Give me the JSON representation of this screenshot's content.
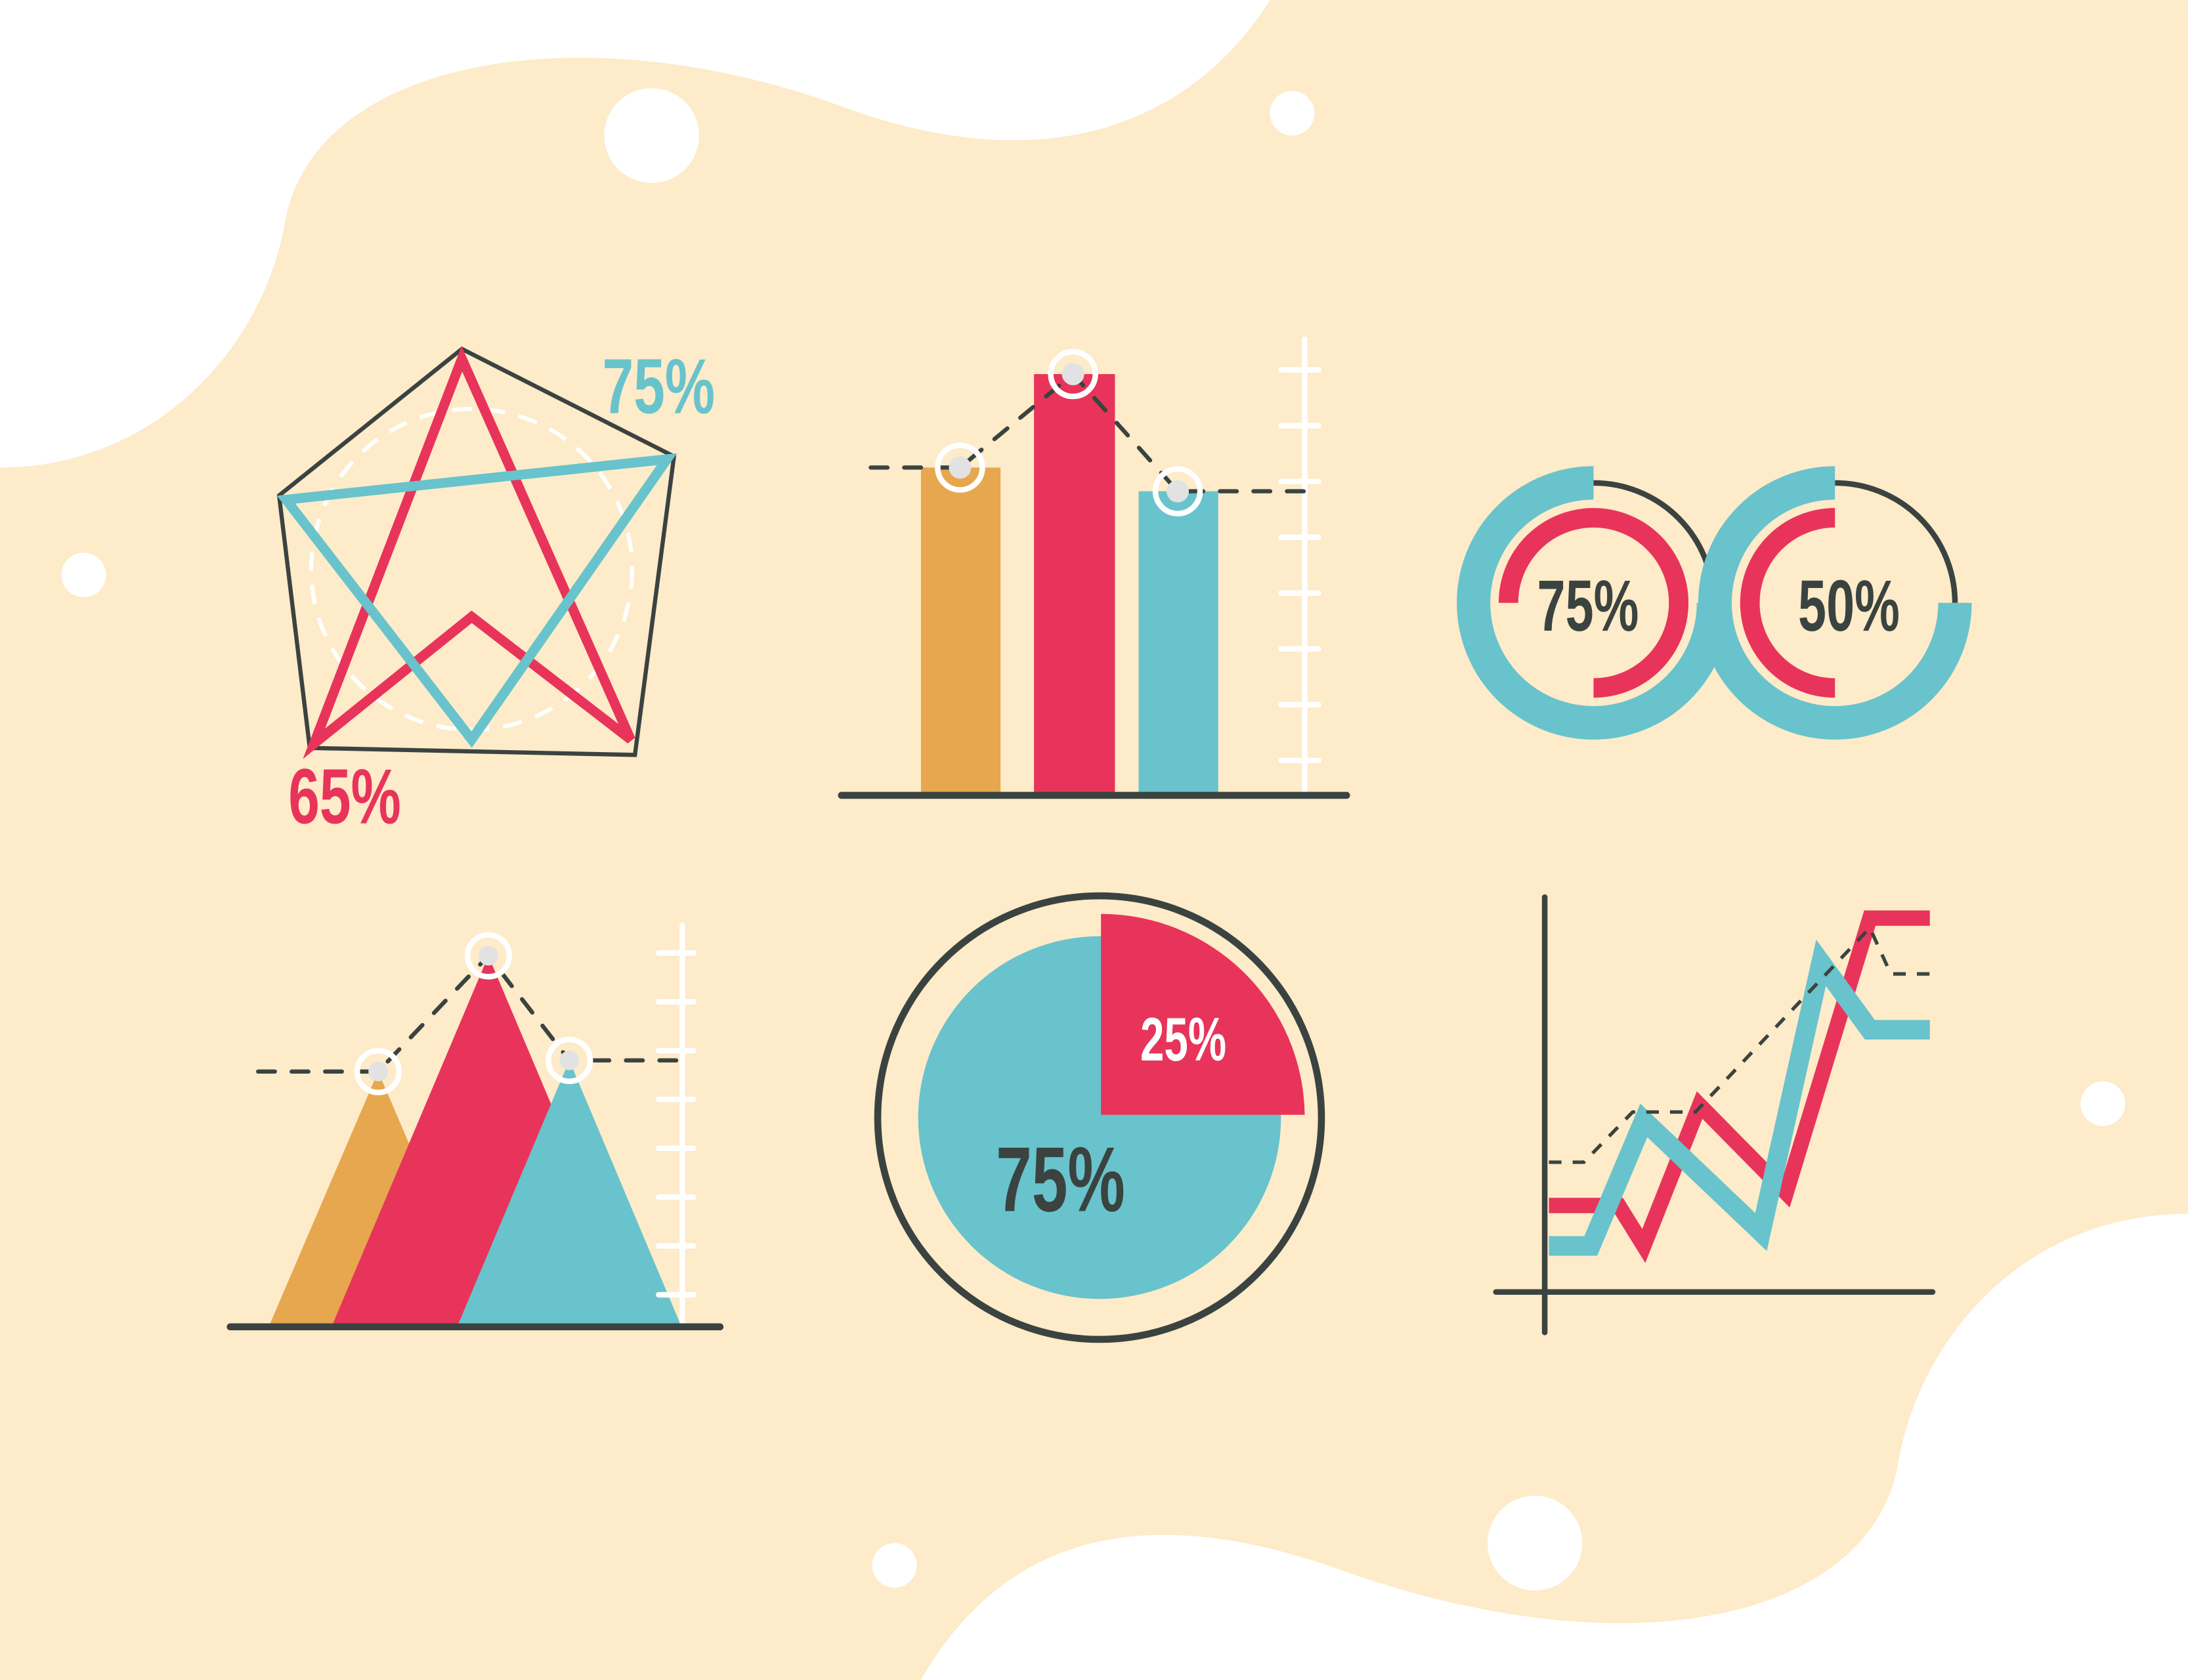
{
  "colors": {
    "background": "#FDEBC9",
    "red": "#E8345A",
    "teal": "#68C3CC",
    "orange": "#E6A74E",
    "dark": "#3A4340",
    "white": "#FFFFFF"
  },
  "radar_chart": {
    "label_teal": "75%",
    "label_red": "65%"
  },
  "bar_chart": {
    "bars": [
      "orange",
      "red",
      "teal"
    ],
    "relative_heights": [
      0.77,
      1.0,
      0.72
    ]
  },
  "donut_charts": [
    {
      "label": "75%",
      "outer_fill": 0.75,
      "inner_fill": 0.75
    },
    {
      "label": "50%",
      "outer_fill": 0.75,
      "inner_fill": 0.5
    }
  ],
  "pie_chart": {
    "slices": [
      {
        "label": "25%",
        "value": 25,
        "color": "red"
      },
      {
        "label": "75%",
        "value": 75,
        "color": "teal"
      }
    ]
  },
  "mountain_chart": {
    "peaks": [
      "orange",
      "red",
      "teal"
    ]
  },
  "line_chart": {
    "series": [
      "red",
      "teal",
      "dashed"
    ]
  }
}
